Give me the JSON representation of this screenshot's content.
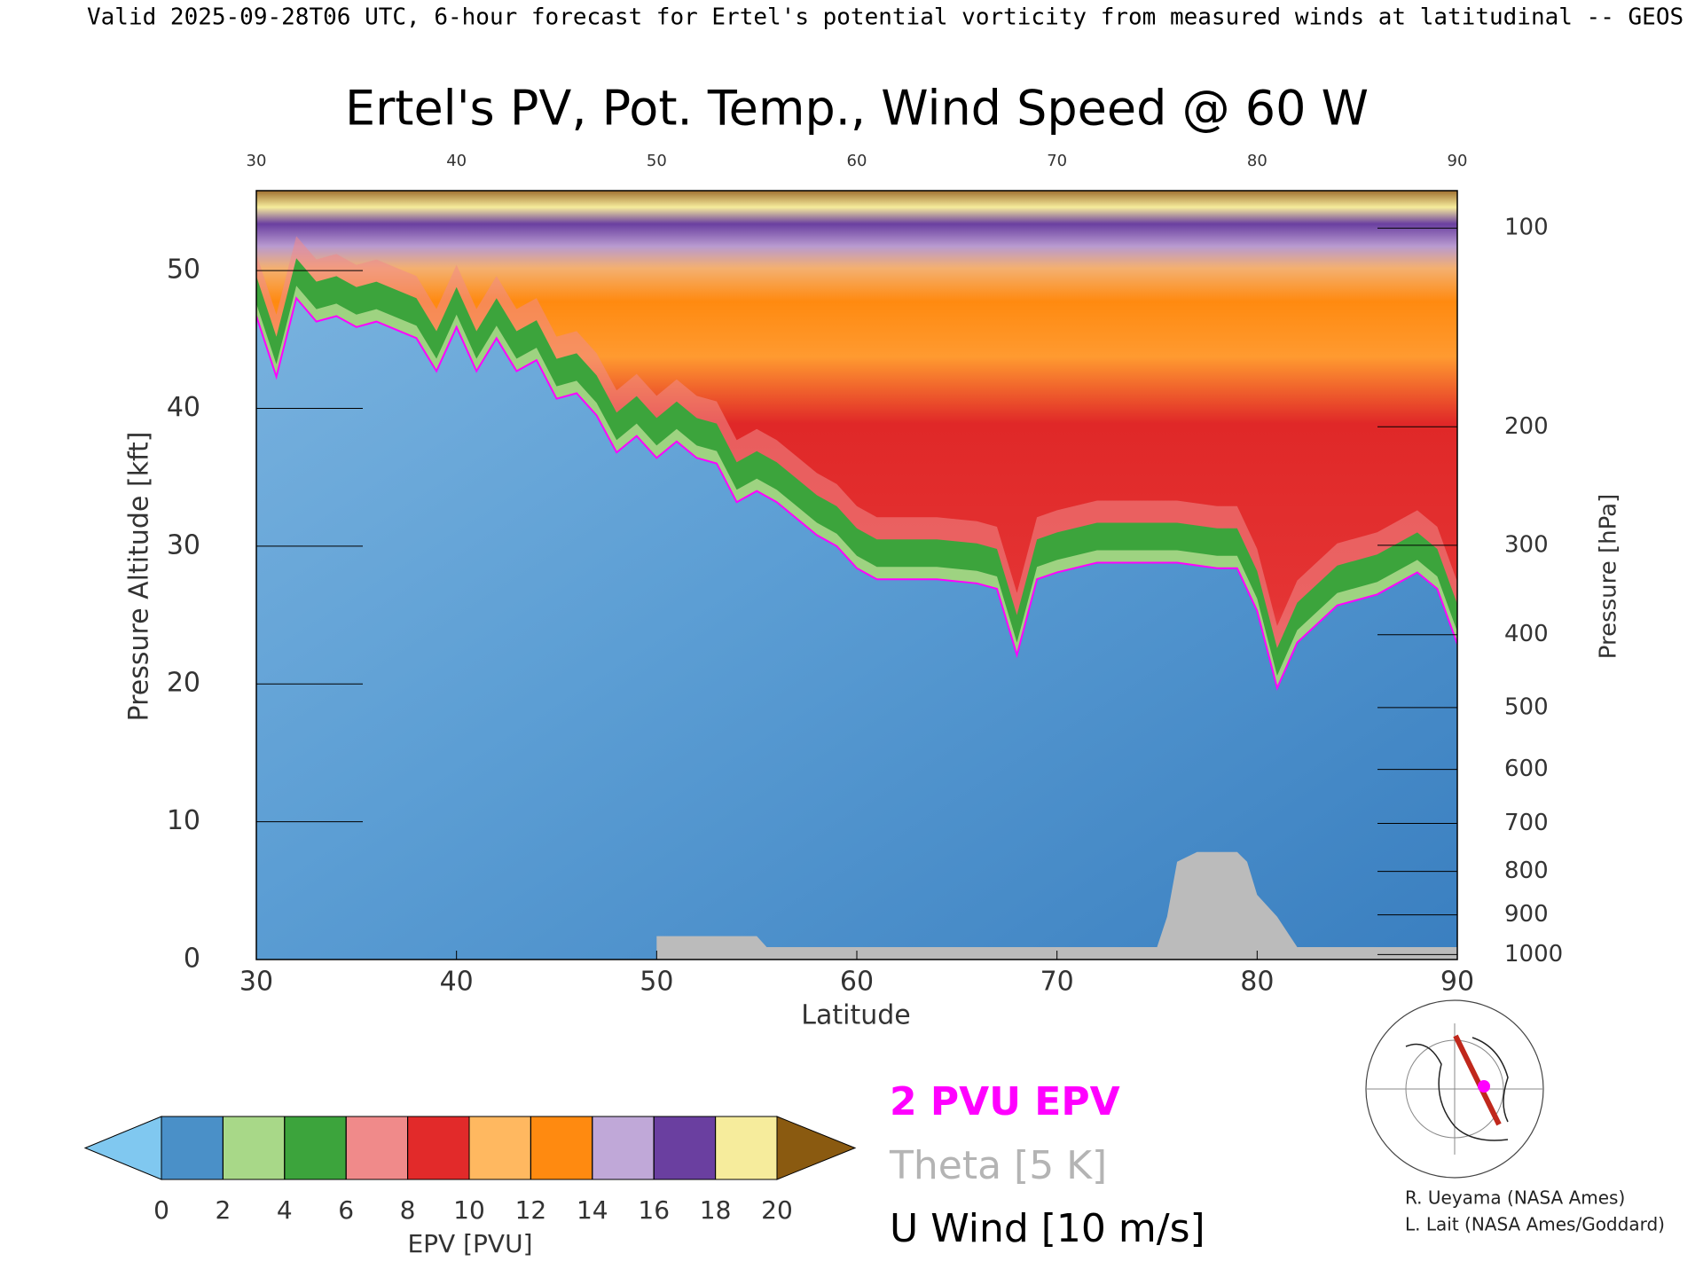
{
  "chart_data": {
    "type": "cross-section",
    "header": "Valid 2025-09-28T06 UTC, 6-hour forecast for Ertel's potential vorticity from measured winds at latitudinal -- GEOS",
    "title": "Ertel's PV, Pot. Temp., Wind Speed @ 60 W",
    "x_label": "Latitude",
    "y_label": "Pressure Altitude [kft]",
    "y2_label": "Pressure [hPa]",
    "xlim": [
      30,
      90
    ],
    "xticks": [
      30,
      40,
      50,
      60,
      70,
      80,
      90
    ],
    "ylim": [
      0,
      55.8
    ],
    "yticks": [
      0,
      10,
      20,
      30,
      40,
      50
    ],
    "y2ticks": [
      100,
      200,
      300,
      400,
      500,
      600,
      700,
      800,
      900,
      1000
    ],
    "series": [
      {
        "name": "2 PVU EPV",
        "color": "#ff00ff",
        "x": [
          30,
          31,
          32,
          33,
          34,
          35,
          36,
          38,
          39,
          40,
          41,
          42,
          43,
          44,
          45,
          46,
          47,
          48,
          49,
          50,
          51,
          52,
          53,
          54,
          55,
          56,
          57,
          58,
          59,
          60,
          61,
          62,
          64,
          66,
          67,
          68,
          69,
          70,
          72,
          74,
          76,
          78,
          79,
          80,
          81,
          82,
          84,
          86,
          88,
          89,
          90
        ],
        "values": [
          46.7,
          42.3,
          48,
          46.3,
          46.7,
          45.9,
          46.3,
          45.1,
          42.7,
          45.9,
          42.7,
          45.1,
          42.7,
          43.5,
          40.7,
          41.1,
          39.5,
          36.8,
          38,
          36.4,
          37.6,
          36.4,
          36,
          33.2,
          34,
          33.2,
          32,
          30.8,
          30,
          28.4,
          27.6,
          27.6,
          27.6,
          27.3,
          26.9,
          22.1,
          27.6,
          28.1,
          28.8,
          28.8,
          28.8,
          28.4,
          28.4,
          25.3,
          19.7,
          23,
          25.7,
          26.5,
          28.1,
          26.9,
          22.9
        ]
      }
    ],
    "contours": [
      {
        "name": "Theta [5 K]",
        "color": "#b4b4b4"
      },
      {
        "name": "U Wind [10 m/s]",
        "color": "#000000"
      }
    ],
    "terrain": {
      "color": "#bbbbbb",
      "x": [
        50,
        55,
        55.5,
        75,
        75.5,
        76,
        77,
        79,
        79.5,
        80,
        81,
        82,
        90
      ],
      "values": [
        1.7,
        1.7,
        0.9,
        0.9,
        3.1,
        7.1,
        7.8,
        7.8,
        7.1,
        4.7,
        3.1,
        0.9,
        0.9
      ]
    },
    "colorbar": {
      "label": "EPV [PVU]",
      "clim": [
        0,
        20
      ],
      "cticks": [
        0,
        2,
        4,
        6,
        8,
        10,
        12,
        14,
        16,
        18,
        20
      ],
      "colors": [
        "#4a90c8",
        "#a8d888",
        "#3ca43c",
        "#f08a8a",
        "#e22a2a",
        "#ffb860",
        "#ff8a10",
        "#c0a8d8",
        "#6a3fa0",
        "#f6ec9c"
      ],
      "under_color": "#80c8f0",
      "over_color": "#8a5a10"
    },
    "credits": [
      "R. Ueyama (NASA Ames)",
      "L. Lait (NASA Ames/Goddard)"
    ]
  }
}
